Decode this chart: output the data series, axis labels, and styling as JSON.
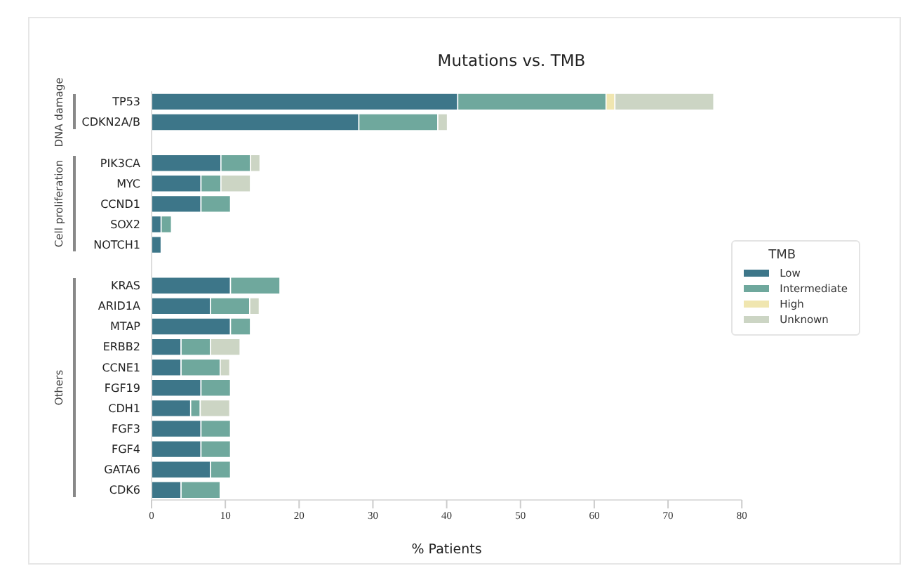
{
  "chart_data": {
    "type": "bar",
    "orientation": "horizontal",
    "stacked": true,
    "title": "Mutations vs. TMB",
    "xlabel": "% Patients",
    "legend_title": "TMB",
    "legend": "right",
    "categories": [
      "TP53",
      "CDKN2A/B",
      null,
      "PIK3CA",
      "MYC",
      "CCND1",
      "SOX2",
      "NOTCH1",
      null,
      "KRAS",
      "ARID1A",
      "MTAP",
      "ERBB2",
      "CCNE1",
      "FGF19",
      "CDH1",
      "FGF3",
      "FGF4",
      "GATA6",
      "CDK6"
    ],
    "xlim": [
      0,
      80
    ],
    "xticks": [
      0,
      10,
      20,
      30,
      40,
      50,
      60,
      70,
      80
    ],
    "annotations": [
      "DNA damage",
      "Cell proliferation",
      "Others"
    ],
    "series": [
      {
        "name": "Low",
        "color": "#3d7689",
        "values": [
          41.5,
          28.1,
          null,
          9.4,
          6.7,
          6.7,
          1.3,
          1.3,
          null,
          10.7,
          8.0,
          10.7,
          4.0,
          4.0,
          6.7,
          5.3,
          6.7,
          6.7,
          8.0,
          4.0
        ]
      },
      {
        "name": "Intermediate",
        "color": "#6fa89d",
        "values": [
          20.1,
          10.7,
          null,
          4.0,
          2.7,
          4.0,
          1.4,
          null,
          null,
          6.7,
          5.3,
          2.7,
          4.0,
          5.3,
          4.0,
          1.3,
          4.0,
          4.0,
          2.7,
          5.3
        ]
      },
      {
        "name": "High",
        "color": "#f0e6b0",
        "values": [
          1.2,
          null,
          null,
          null,
          null,
          null,
          null,
          null,
          null,
          null,
          null,
          null,
          null,
          null,
          null,
          null,
          null,
          null,
          null,
          null
        ]
      },
      {
        "name": "Unknown",
        "color": "#ccd5c4",
        "values": [
          13.4,
          1.3,
          null,
          1.3,
          4.0,
          null,
          null,
          null,
          null,
          null,
          1.3,
          null,
          4.0,
          1.3,
          null,
          4.0,
          null,
          null,
          null,
          null
        ]
      }
    ]
  }
}
